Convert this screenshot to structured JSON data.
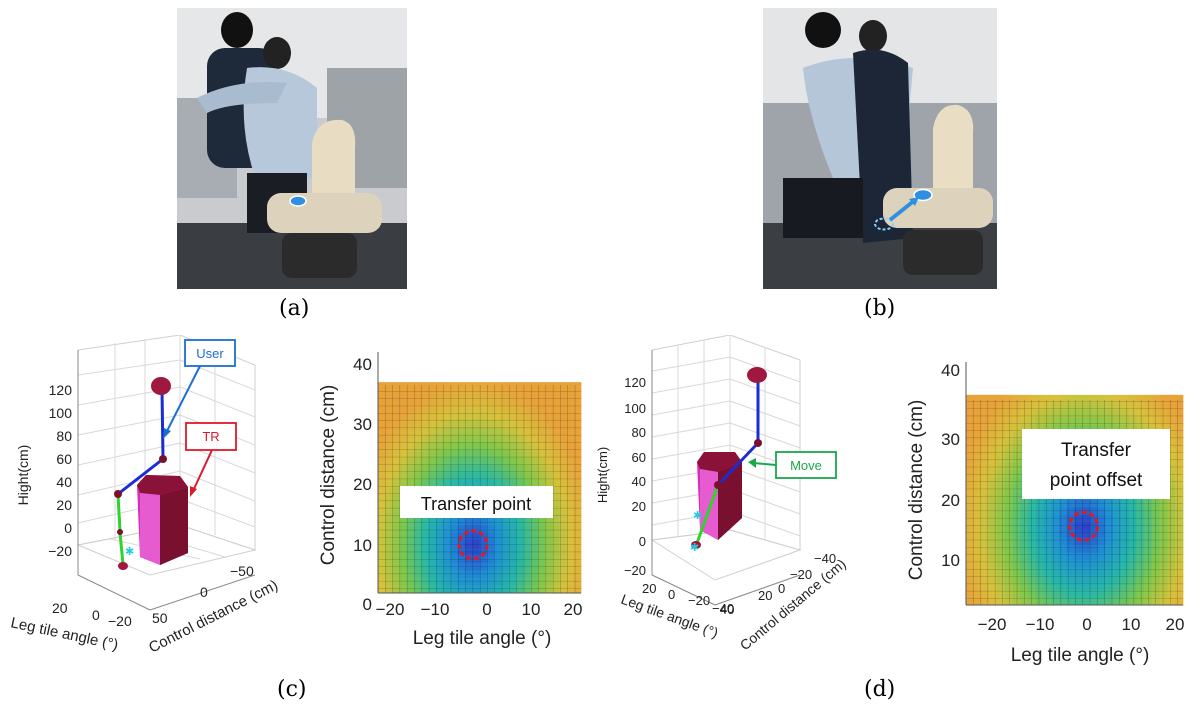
{
  "panels": {
    "a": {
      "label": "(a)"
    },
    "b": {
      "label": "(b)"
    },
    "c": {
      "label": "(c)"
    },
    "d": {
      "label": "(d)"
    }
  },
  "callouts": {
    "user": "User",
    "tr": "TR",
    "move": "Move"
  },
  "heatmap_c": {
    "annotation": "Transfer point",
    "xlabel": "Leg tile angle (°)",
    "ylabel": "Control distance (cm)",
    "xticks": [
      "−20",
      "−10",
      "0",
      "10",
      "20"
    ],
    "yticks": [
      "0",
      "10",
      "20",
      "30",
      "40"
    ]
  },
  "heatmap_d": {
    "annotation_lines": [
      "Transfer",
      "point offset"
    ],
    "xlabel": "Leg tile angle (°)",
    "ylabel": "Control distance (cm)",
    "xticks": [
      "−20",
      "−10",
      "0",
      "10",
      "20"
    ],
    "yticks": [
      "10",
      "20",
      "30",
      "40"
    ]
  },
  "plot3d_c": {
    "zlabel": "Hight(cm)",
    "xlabel": "Leg tile angle (°)",
    "ylabel": "Control distance (cm)",
    "zticks": [
      "120",
      "100",
      "80",
      "60",
      "40",
      "20",
      "0",
      "−20"
    ],
    "xticks": [
      "20",
      "0",
      "−20"
    ],
    "yticks": [
      "50",
      "0",
      "−50"
    ]
  },
  "plot3d_d": {
    "zlabel": "Hight(cm)",
    "xlabel": "Leg tile angle (°)",
    "ylabel": "Control distance (cm)",
    "zticks": [
      "120",
      "100",
      "80",
      "60",
      "40",
      "20",
      "0",
      "−20"
    ],
    "xticks": [
      "20",
      "0",
      "−20",
      "−40"
    ],
    "yticks": [
      "40",
      "20",
      "0",
      "−20",
      "−40"
    ]
  },
  "chart_data": [
    {
      "type": "heatmap",
      "xlabel": "Leg tile angle (°)",
      "ylabel": "Control distance (cm)",
      "xlim": [
        -25,
        22
      ],
      "ylim": [
        0,
        40
      ],
      "surface_top": 35,
      "minimum": {
        "x": -3,
        "y": 8
      },
      "annotation": "Transfer point",
      "colors": [
        "#2e3cc8",
        "#1f8fd6",
        "#27b8a8",
        "#7fc84c",
        "#d7c23c",
        "#e8a23a"
      ]
    },
    {
      "type": "heatmap",
      "xlabel": "Leg tile angle (°)",
      "ylabel": "Control distance (cm)",
      "xlim": [
        -25,
        23
      ],
      "ylim": [
        3,
        40
      ],
      "surface_top": 35,
      "minimum": {
        "x": 1,
        "y": 15
      },
      "annotation": "Transfer point offset",
      "colors": [
        "#2e3cc8",
        "#1f8fd6",
        "#27b8a8",
        "#7fc84c",
        "#d7c23c",
        "#e8a23a"
      ]
    }
  ]
}
